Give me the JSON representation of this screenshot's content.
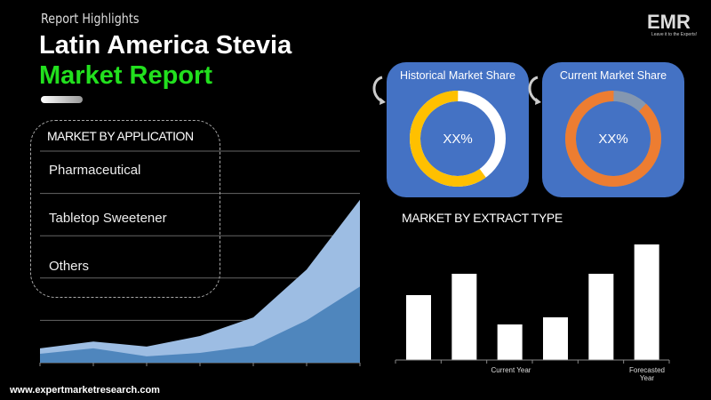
{
  "header": {
    "kicker": "Report Highlights",
    "title_line1": "Latin America Stevia",
    "title_line2": "Market Report"
  },
  "logo": {
    "text": "EMR",
    "tagline": "Leave it to the Experts!"
  },
  "application": {
    "title": "MARKET BY APPLICATION",
    "items": [
      "Pharmaceutical",
      "Tabletop Sweetener",
      "Others"
    ]
  },
  "cards": [
    {
      "title": "Historical Market Share",
      "value": "XX%",
      "ring_colors": [
        "#ffc000",
        "#ffffff"
      ],
      "ring_fraction": 0.6
    },
    {
      "title": "Current Market Share",
      "value": "XX%",
      "ring_colors": [
        "#ed7d31",
        "#8497b0"
      ],
      "ring_fraction": 0.88
    }
  ],
  "colors": {
    "accent_green": "#22e01e",
    "card_blue": "#4472c4",
    "area_light": "#9dbde3",
    "area_dark": "#4f86bd"
  },
  "chart_data": [
    {
      "type": "area",
      "grid": true,
      "ylim": [
        0,
        5
      ],
      "series": [
        {
          "values": [
            0.34,
            0.5,
            0.38,
            0.63,
            1.07,
            2.2,
            3.85
          ]
        },
        {
          "values": [
            0.21,
            0.34,
            0.15,
            0.23,
            0.4,
            1.0,
            1.8
          ]
        }
      ]
    },
    {
      "type": "bar",
      "title": "MARKET BY EXTRACT TYPE",
      "values": [
        73,
        97,
        40,
        48,
        97,
        130
      ],
      "ylim": [
        0,
        135
      ],
      "xlabels": [
        "Current Year",
        "Forecasted Year"
      ]
    }
  ],
  "footer": {
    "url": "www.expertmarketresearch.com"
  }
}
